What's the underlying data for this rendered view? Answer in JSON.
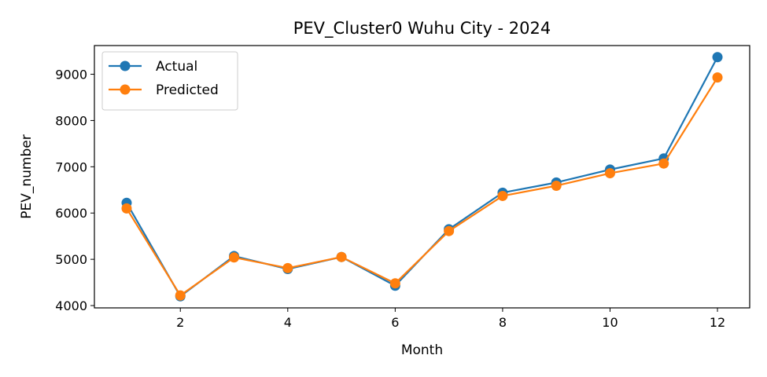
{
  "chart_data": {
    "type": "line",
    "title": "PEV_Cluster0 Wuhu City - 2024",
    "xlabel": "Month",
    "ylabel": "PEV_number",
    "x": [
      1,
      2,
      3,
      4,
      5,
      6,
      7,
      8,
      9,
      10,
      11,
      12
    ],
    "xlim": [
      0.4,
      12.6
    ],
    "ylim": [
      3950,
      9620
    ],
    "xticks": [
      2,
      4,
      6,
      8,
      10,
      12
    ],
    "yticks": [
      4000,
      5000,
      6000,
      7000,
      8000,
      9000
    ],
    "legend_position": "upper-left",
    "grid": false,
    "series": [
      {
        "name": "Actual",
        "color": "#1f77b4",
        "values": [
          6220,
          4200,
          5070,
          4790,
          5050,
          4430,
          5650,
          6440,
          6660,
          6940,
          7180,
          9370
        ]
      },
      {
        "name": "Predicted",
        "color": "#ff7f0e",
        "values": [
          6100,
          4220,
          5040,
          4810,
          5050,
          4480,
          5610,
          6370,
          6590,
          6860,
          7070,
          8930
        ]
      }
    ]
  }
}
